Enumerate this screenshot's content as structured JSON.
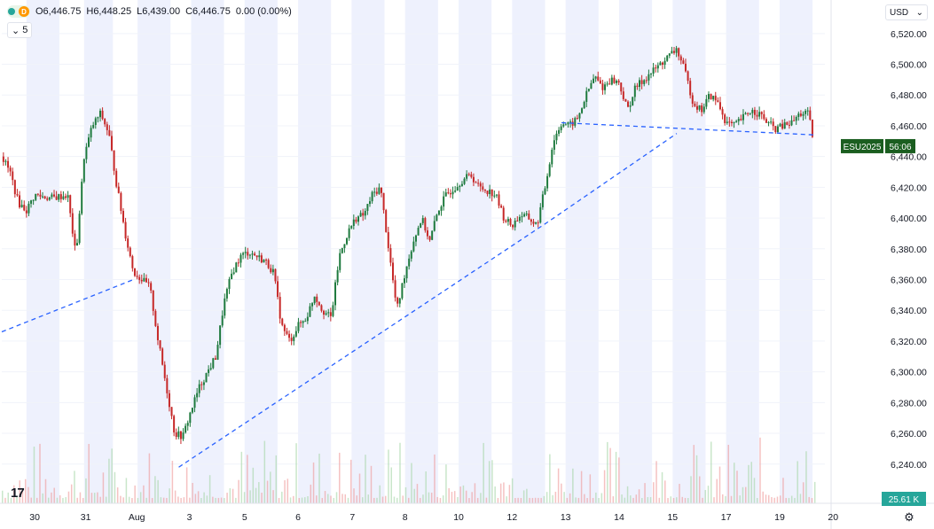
{
  "header": {
    "open": "O6,446.75",
    "high": "H6,448.25",
    "low": "L6,439.00",
    "close": "C6,446.75",
    "change": "0.00 (0.00%)",
    "badge": "D",
    "interval": "5"
  },
  "currency": "USD",
  "symbol_badge": {
    "symbol": "ESU2025",
    "countdown": "56:06",
    "price": 6446.75,
    "color": "#1b5e20"
  },
  "volume_badge": {
    "text": "25.61 K",
    "color": "#26a69a"
  },
  "colors": {
    "up": "#26a69a",
    "down": "#ef5350",
    "body_up": "#1e7a3e",
    "body_down": "#c62828",
    "session_shade": "#eef1fd",
    "trendline": "#2962ff"
  },
  "chart_data": {
    "type": "candlestick",
    "y_axis": {
      "ticks": [
        6240,
        6260,
        6280,
        6300,
        6320,
        6340,
        6360,
        6380,
        6400,
        6420,
        6440,
        6460,
        6480,
        6500,
        6520
      ],
      "tick_labels": [
        "6,240.00",
        "6,260.00",
        "6,280.00",
        "6,300.00",
        "6,320.00",
        "6,340.00",
        "6,360.00",
        "6,380.00",
        "6,400.00",
        "6,420.00",
        "6,440.00",
        "6,460.00",
        "6,480.00",
        "6,500.00",
        "6,520.00"
      ],
      "range": [
        6222,
        6532
      ]
    },
    "x_axis": {
      "labels": [
        "30",
        "31",
        "Aug",
        "3",
        "5",
        "6",
        "7",
        "8",
        "10",
        "12",
        "13",
        "14",
        "15",
        "17",
        "19",
        "20"
      ],
      "range": [
        0,
        100
      ]
    },
    "sessions": [
      [
        3,
        7
      ],
      [
        10,
        13.5
      ],
      [
        16.5,
        20.5
      ],
      [
        23,
        27
      ],
      [
        29.5,
        33.5
      ],
      [
        36,
        40
      ],
      [
        42.5,
        46.5
      ],
      [
        49,
        53
      ],
      [
        55.5,
        59.5
      ],
      [
        62,
        66
      ],
      [
        68.5,
        72.5
      ],
      [
        75,
        79
      ],
      [
        81.5,
        85.5
      ],
      [
        88,
        92
      ],
      [
        94.5,
        98.5
      ]
    ],
    "price_path": [
      [
        0,
        6440
      ],
      [
        1,
        6430
      ],
      [
        2,
        6410
      ],
      [
        3,
        6405
      ],
      [
        4,
        6415
      ],
      [
        6,
        6413
      ],
      [
        8,
        6415
      ],
      [
        9,
        6375
      ],
      [
        10,
        6440
      ],
      [
        11,
        6460
      ],
      [
        12,
        6468
      ],
      [
        13,
        6455
      ],
      [
        14,
        6420
      ],
      [
        15,
        6390
      ],
      [
        16,
        6365
      ],
      [
        17,
        6360
      ],
      [
        18,
        6355
      ],
      [
        19,
        6320
      ],
      [
        20,
        6290
      ],
      [
        21,
        6260
      ],
      [
        22,
        6258
      ],
      [
        23,
        6275
      ],
      [
        24,
        6290
      ],
      [
        25,
        6300
      ],
      [
        26,
        6310
      ],
      [
        27,
        6345
      ],
      [
        28,
        6365
      ],
      [
        29,
        6375
      ],
      [
        30,
        6378
      ],
      [
        31,
        6375
      ],
      [
        32,
        6372
      ],
      [
        33,
        6365
      ],
      [
        34,
        6330
      ],
      [
        35,
        6320
      ],
      [
        36,
        6330
      ],
      [
        37,
        6335
      ],
      [
        38,
        6350
      ],
      [
        39,
        6340
      ],
      [
        40,
        6335
      ],
      [
        41,
        6375
      ],
      [
        42,
        6390
      ],
      [
        43,
        6400
      ],
      [
        44,
        6402
      ],
      [
        45,
        6415
      ],
      [
        46,
        6420
      ],
      [
        47,
        6380
      ],
      [
        48,
        6340
      ],
      [
        49,
        6365
      ],
      [
        50,
        6385
      ],
      [
        51,
        6400
      ],
      [
        52,
        6385
      ],
      [
        53,
        6405
      ],
      [
        54,
        6415
      ],
      [
        55,
        6420
      ],
      [
        56,
        6425
      ],
      [
        57,
        6428
      ],
      [
        58,
        6420
      ],
      [
        59,
        6418
      ],
      [
        60,
        6415
      ],
      [
        61,
        6400
      ],
      [
        62,
        6395
      ],
      [
        63,
        6402
      ],
      [
        64,
        6400
      ],
      [
        65,
        6395
      ],
      [
        66,
        6420
      ],
      [
        67,
        6450
      ],
      [
        68,
        6462
      ],
      [
        69,
        6460
      ],
      [
        70,
        6465
      ],
      [
        71,
        6480
      ],
      [
        72,
        6492
      ],
      [
        73,
        6485
      ],
      [
        74,
        6490
      ],
      [
        75,
        6488
      ],
      [
        76,
        6470
      ],
      [
        77,
        6485
      ],
      [
        78,
        6490
      ],
      [
        79,
        6495
      ],
      [
        80,
        6500
      ],
      [
        81,
        6505
      ],
      [
        82,
        6510
      ],
      [
        83,
        6495
      ],
      [
        84,
        6475
      ],
      [
        85,
        6470
      ],
      [
        86,
        6480
      ],
      [
        87,
        6475
      ],
      [
        88,
        6462
      ],
      [
        89,
        6460
      ],
      [
        90,
        6465
      ],
      [
        91,
        6470
      ],
      [
        92,
        6468
      ],
      [
        93,
        6462
      ],
      [
        94,
        6458
      ],
      [
        95,
        6460
      ],
      [
        96,
        6462
      ],
      [
        97,
        6468
      ],
      [
        98,
        6468
      ],
      [
        98.7,
        6446
      ]
    ],
    "trendlines": [
      [
        [
          0,
          6326
        ],
        [
          16,
          6360
        ]
      ],
      [
        [
          21.5,
          6238
        ],
        [
          66.5,
          6398
        ],
        [
          82,
          6455
        ]
      ],
      [
        [
          68,
          6462
        ],
        [
          99,
          6454
        ]
      ]
    ]
  }
}
